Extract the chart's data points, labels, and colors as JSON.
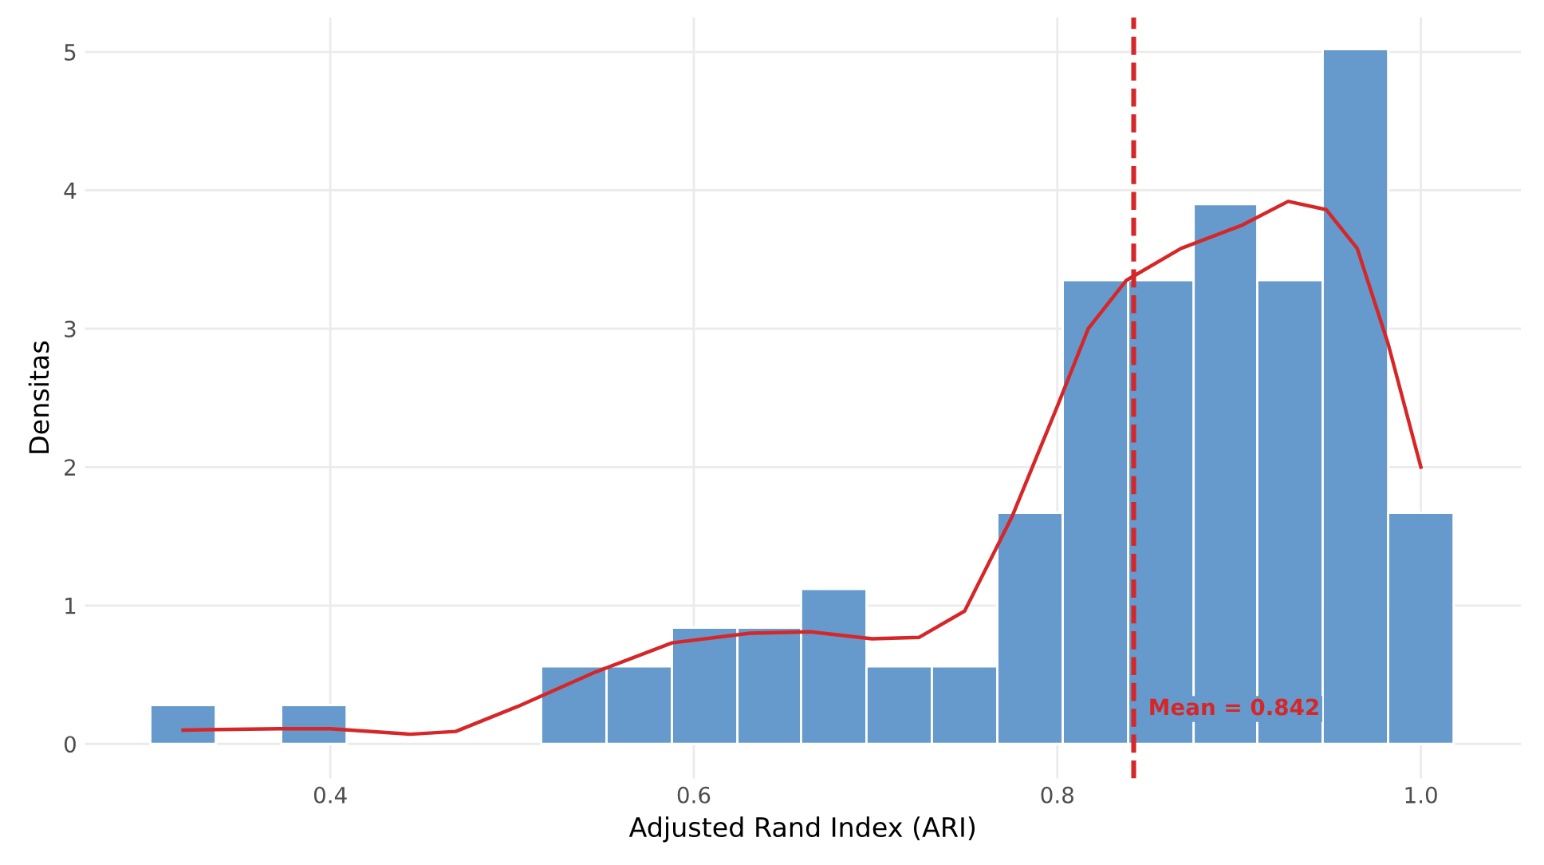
{
  "chart_data": {
    "type": "histogram",
    "xlabel": "Adjusted Rand Index (ARI)",
    "ylabel": "Densitas",
    "bins": [
      0.301,
      0.337,
      0.373,
      0.409,
      0.516,
      0.552,
      0.588,
      0.624,
      0.659,
      0.695,
      0.731,
      0.767,
      0.803,
      0.839,
      0.875,
      0.91,
      0.946,
      0.982,
      1.018
    ],
    "values": [
      0.28,
      0,
      0.28,
      0,
      0.56,
      0.56,
      0.84,
      0.84,
      1.12,
      0.56,
      0.56,
      1.67,
      3.35,
      3.35,
      3.9,
      3.35,
      5.02,
      1.67
    ],
    "color": "#6699cc",
    "series": [
      {
        "type": "line",
        "color": "#d62728",
        "x": [
          0.319,
          0.372,
          0.4,
          0.444,
          0.469,
          0.503,
          0.546,
          0.588,
          0.631,
          0.664,
          0.698,
          0.724,
          0.749,
          0.775,
          0.8,
          0.817,
          0.838,
          0.868,
          0.902,
          0.927,
          0.948,
          0.965,
          0.982,
          1.0
        ],
        "values": [
          0.1,
          0.11,
          0.11,
          0.07,
          0.09,
          0.27,
          0.52,
          0.73,
          0.8,
          0.81,
          0.76,
          0.77,
          0.96,
          1.64,
          2.44,
          3.0,
          3.35,
          3.58,
          3.75,
          3.92,
          3.86,
          3.58,
          2.89,
          2.0
        ]
      }
    ],
    "ref_lines": [
      {
        "axis": "x",
        "value": 0.842,
        "label": "Mean = 0.842",
        "color": "#d62728",
        "line_style": "dashed"
      }
    ],
    "xlim": [
      0.265,
      1.055
    ],
    "ylim": [
      -0.25,
      5.25
    ],
    "xticks": [
      0.4,
      0.6,
      0.8,
      {
        "value": 1.0,
        "label": "1.0"
      }
    ],
    "yticks": [
      0,
      1,
      2,
      3,
      4,
      5
    ],
    "grid": true
  }
}
